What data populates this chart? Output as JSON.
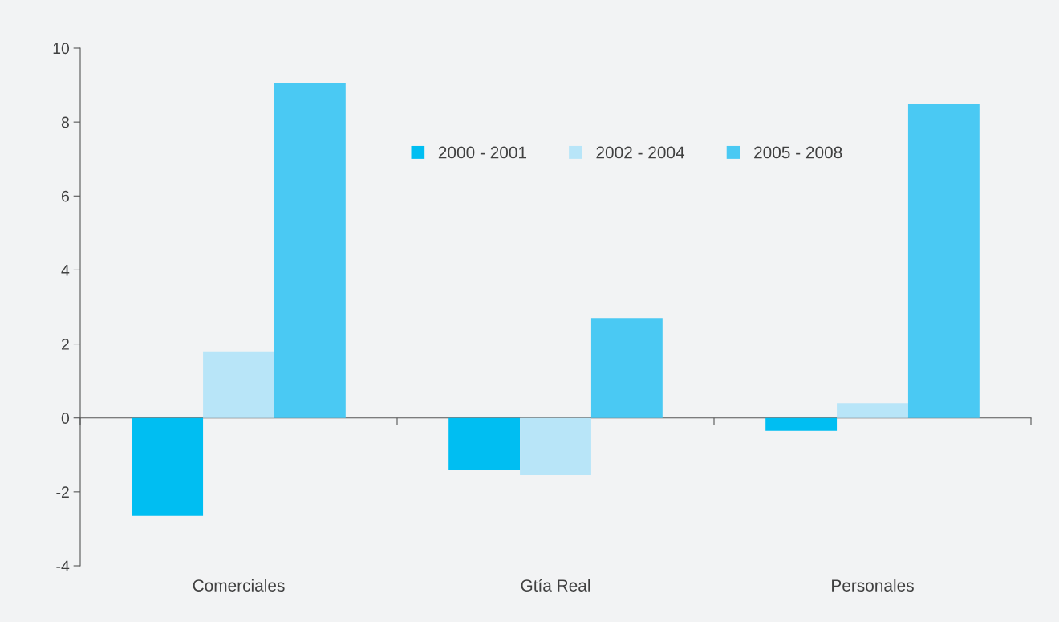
{
  "chart_data": {
    "type": "bar",
    "categories": [
      "Comerciales",
      "Gtía Real",
      "Personales"
    ],
    "series": [
      {
        "name": "2000 - 2001",
        "color": "#00bef2",
        "values": [
          -2.65,
          -1.4,
          -0.35
        ]
      },
      {
        "name": "2002 - 2004",
        "color": "#b8e5f8",
        "values": [
          1.8,
          -1.55,
          0.4
        ]
      },
      {
        "name": "2005 - 2008",
        "color": "#4ac9f3",
        "values": [
          9.05,
          2.7,
          8.5
        ]
      }
    ],
    "ylim": [
      -4,
      10
    ],
    "yticks": [
      -4,
      -2,
      0,
      2,
      4,
      6,
      8,
      10
    ],
    "legend": "top"
  }
}
